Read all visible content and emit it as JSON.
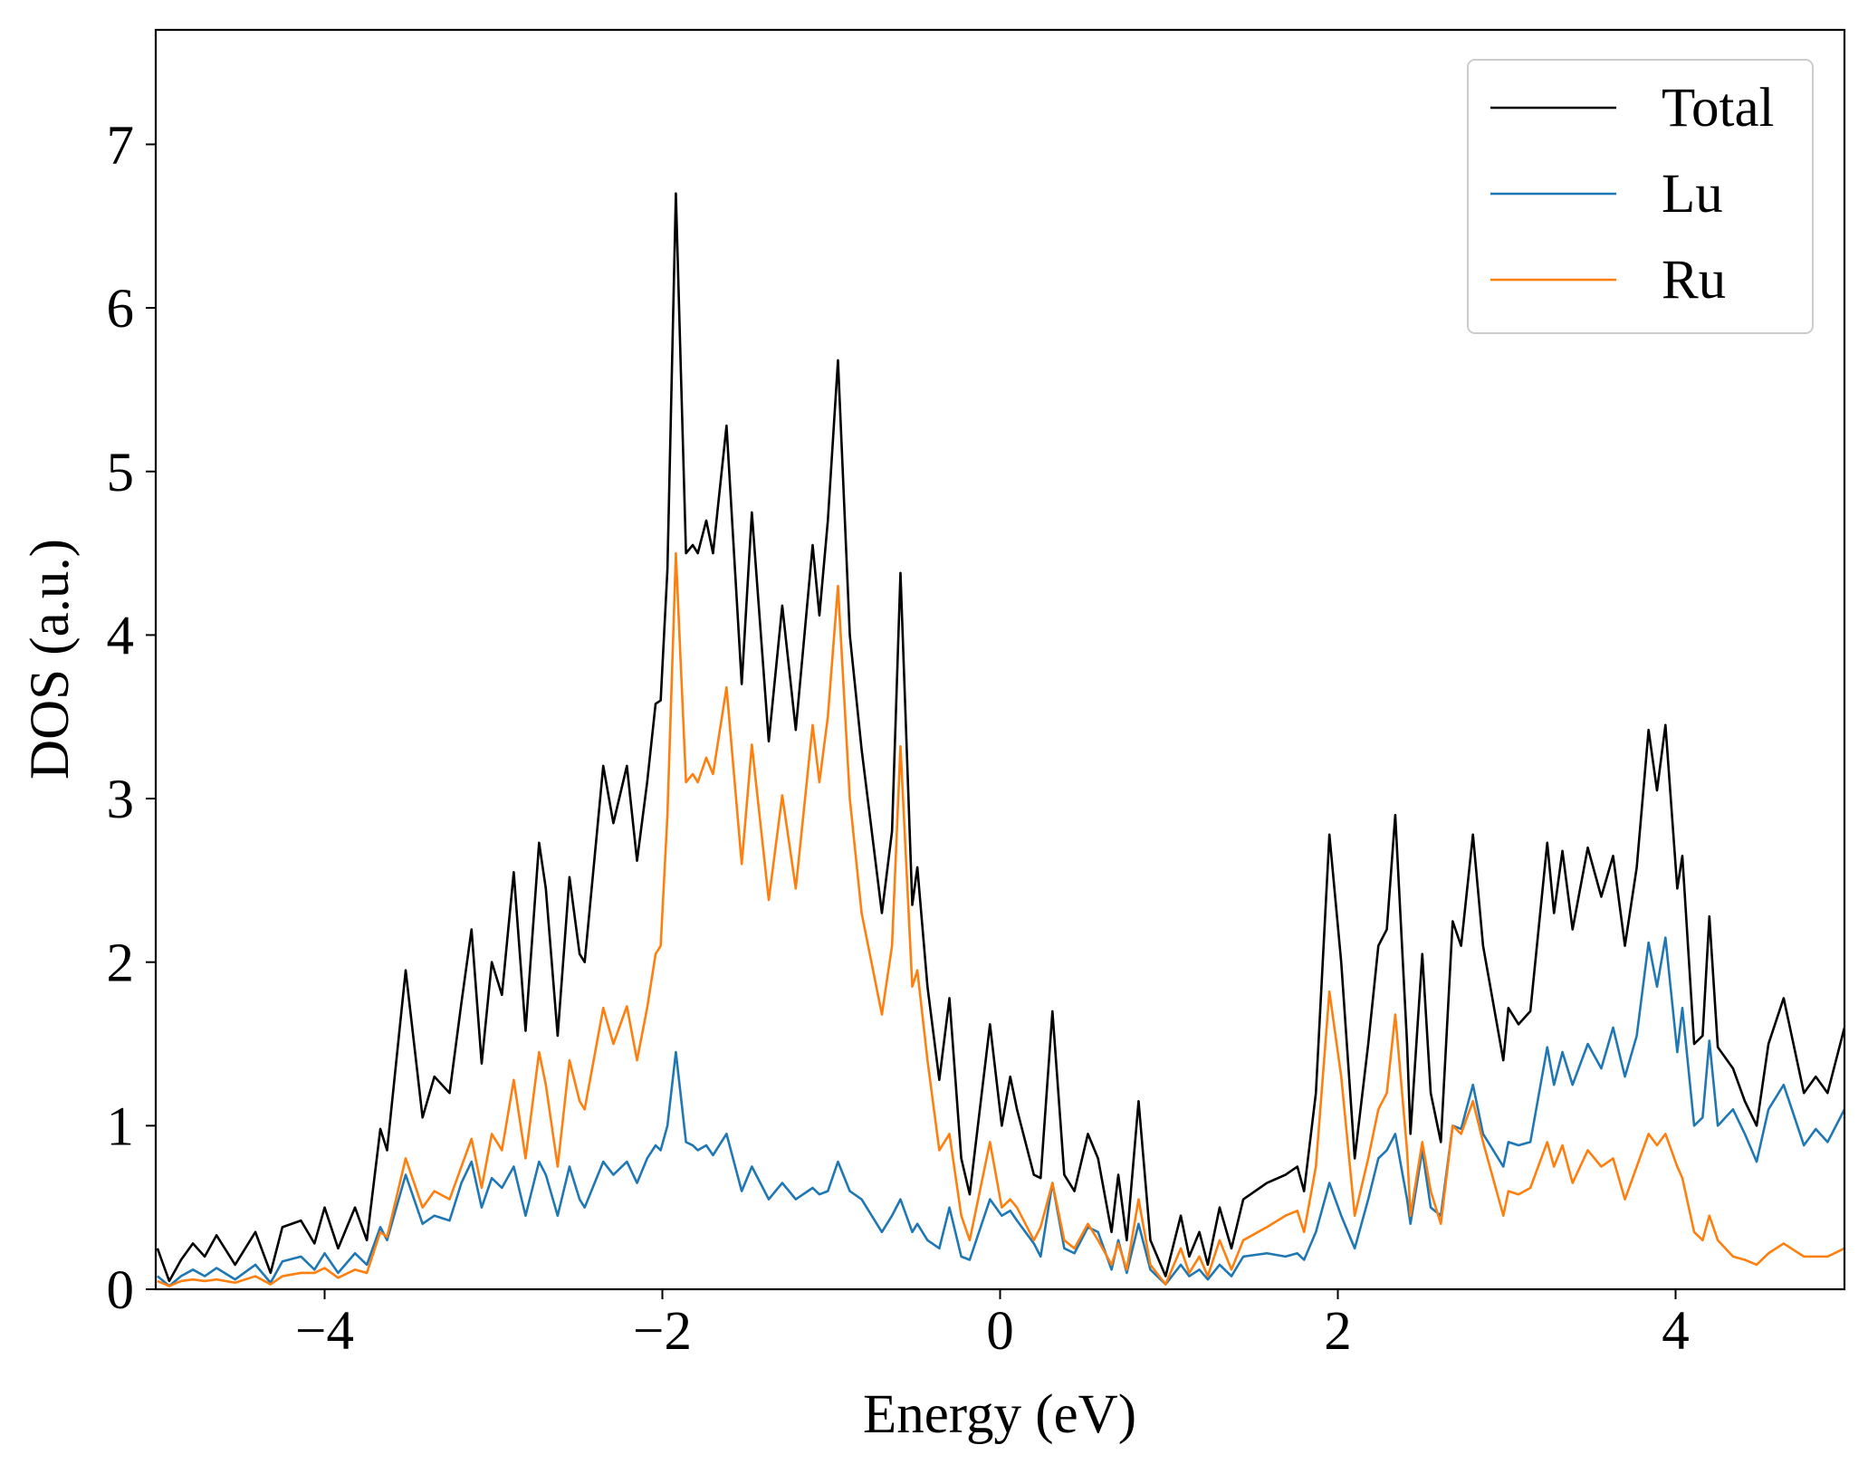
{
  "chart_data": {
    "type": "line",
    "xlabel": "Energy (eV)",
    "ylabel": "DOS (a.u.)",
    "xlim": [
      -5,
      5
    ],
    "ylim": [
      0,
      7.7
    ],
    "xticks": [
      {
        "value": -4,
        "label": "−4"
      },
      {
        "value": -2,
        "label": "−2"
      },
      0,
      2,
      4
    ],
    "yticks": [
      0,
      1,
      2,
      3,
      4,
      5,
      6,
      7
    ],
    "grid": false,
    "legend": "upper right",
    "x": [
      -4.99,
      -4.92,
      -4.85,
      -4.78,
      -4.71,
      -4.64,
      -4.53,
      -4.41,
      -4.32,
      -4.25,
      -4.14,
      -4.06,
      -4.0,
      -3.92,
      -3.82,
      -3.75,
      -3.67,
      -3.63,
      -3.52,
      -3.42,
      -3.35,
      -3.26,
      -3.19,
      -3.13,
      -3.07,
      -3.01,
      -2.95,
      -2.88,
      -2.81,
      -2.73,
      -2.69,
      -2.62,
      -2.55,
      -2.49,
      -2.46,
      -2.35,
      -2.29,
      -2.21,
      -2.15,
      -2.09,
      -2.04,
      -2.01,
      -1.97,
      -1.92,
      -1.86,
      -1.82,
      -1.79,
      -1.74,
      -1.7,
      -1.62,
      -1.53,
      -1.47,
      -1.37,
      -1.29,
      -1.21,
      -1.11,
      -1.07,
      -1.02,
      -0.96,
      -0.89,
      -0.82,
      -0.7,
      -0.64,
      -0.59,
      -0.52,
      -0.49,
      -0.43,
      -0.36,
      -0.3,
      -0.23,
      -0.18,
      -0.06,
      0.01,
      0.06,
      0.1,
      0.2,
      0.24,
      0.31,
      0.38,
      0.44,
      0.52,
      0.58,
      0.66,
      0.7,
      0.75,
      0.82,
      0.89,
      0.98,
      1.07,
      1.12,
      1.18,
      1.23,
      1.3,
      1.37,
      1.44,
      1.58,
      1.69,
      1.76,
      1.8,
      1.87,
      1.95,
      2.02,
      2.1,
      2.18,
      2.24,
      2.29,
      2.34,
      2.41,
      2.43,
      2.5,
      2.55,
      2.61,
      2.68,
      2.73,
      2.8,
      2.86,
      2.98,
      3.01,
      3.07,
      3.14,
      3.24,
      3.28,
      3.33,
      3.39,
      3.48,
      3.56,
      3.63,
      3.7,
      3.77,
      3.84,
      3.89,
      3.94,
      4.01,
      4.04,
      4.11,
      4.16,
      4.2,
      4.25,
      4.34,
      4.41,
      4.48,
      4.55,
      4.64,
      4.76,
      4.83,
      4.9,
      5.0
    ],
    "series": [
      {
        "name": "Total",
        "color": "#000000",
        "values": [
          0.25,
          0.05,
          0.18,
          0.28,
          0.2,
          0.33,
          0.15,
          0.35,
          0.1,
          0.38,
          0.42,
          0.28,
          0.5,
          0.25,
          0.5,
          0.3,
          0.98,
          0.85,
          1.95,
          1.05,
          1.3,
          1.2,
          1.75,
          2.2,
          1.38,
          2.0,
          1.8,
          2.55,
          1.58,
          2.73,
          2.45,
          1.55,
          2.52,
          2.05,
          2.0,
          3.2,
          2.85,
          3.2,
          2.62,
          3.1,
          3.58,
          3.6,
          4.4,
          6.7,
          4.5,
          4.55,
          4.5,
          4.7,
          4.5,
          5.28,
          3.7,
          4.75,
          3.35,
          4.18,
          3.42,
          4.55,
          4.12,
          4.7,
          5.68,
          4.0,
          3.3,
          2.3,
          2.8,
          4.38,
          2.35,
          2.58,
          1.85,
          1.28,
          1.78,
          0.8,
          0.58,
          1.62,
          1.0,
          1.3,
          1.1,
          0.7,
          0.68,
          1.7,
          0.7,
          0.6,
          0.95,
          0.8,
          0.35,
          0.7,
          0.3,
          1.15,
          0.3,
          0.08,
          0.45,
          0.2,
          0.35,
          0.15,
          0.5,
          0.25,
          0.55,
          0.65,
          0.7,
          0.75,
          0.6,
          1.2,
          2.78,
          2.0,
          0.8,
          1.5,
          2.1,
          2.2,
          2.9,
          1.5,
          0.95,
          2.05,
          1.2,
          0.9,
          2.25,
          2.1,
          2.78,
          2.1,
          1.4,
          1.72,
          1.62,
          1.7,
          2.73,
          2.3,
          2.68,
          2.2,
          2.7,
          2.4,
          2.65,
          2.1,
          2.58,
          3.42,
          3.05,
          3.45,
          2.45,
          2.65,
          1.5,
          1.55,
          2.28,
          1.48,
          1.35,
          1.15,
          1.0,
          1.5,
          1.78,
          1.2,
          1.3,
          1.2,
          1.6
        ]
      },
      {
        "name": "Lu",
        "color": "#1f77b4",
        "values": [
          0.08,
          0.02,
          0.08,
          0.12,
          0.08,
          0.13,
          0.06,
          0.15,
          0.04,
          0.17,
          0.2,
          0.12,
          0.22,
          0.1,
          0.22,
          0.15,
          0.38,
          0.3,
          0.7,
          0.4,
          0.45,
          0.42,
          0.65,
          0.78,
          0.5,
          0.68,
          0.62,
          0.75,
          0.45,
          0.78,
          0.7,
          0.45,
          0.75,
          0.55,
          0.5,
          0.78,
          0.7,
          0.78,
          0.65,
          0.8,
          0.88,
          0.85,
          1.0,
          1.45,
          0.9,
          0.88,
          0.85,
          0.88,
          0.82,
          0.95,
          0.6,
          0.75,
          0.55,
          0.65,
          0.55,
          0.62,
          0.58,
          0.6,
          0.78,
          0.6,
          0.55,
          0.35,
          0.45,
          0.55,
          0.35,
          0.4,
          0.3,
          0.25,
          0.5,
          0.2,
          0.18,
          0.55,
          0.45,
          0.48,
          0.42,
          0.28,
          0.2,
          0.65,
          0.25,
          0.22,
          0.38,
          0.35,
          0.12,
          0.3,
          0.1,
          0.4,
          0.12,
          0.03,
          0.15,
          0.08,
          0.12,
          0.06,
          0.15,
          0.08,
          0.2,
          0.22,
          0.2,
          0.22,
          0.18,
          0.35,
          0.65,
          0.45,
          0.25,
          0.55,
          0.8,
          0.85,
          0.95,
          0.55,
          0.4,
          0.85,
          0.5,
          0.45,
          1.0,
          0.98,
          1.25,
          0.95,
          0.75,
          0.9,
          0.88,
          0.9,
          1.48,
          1.25,
          1.45,
          1.25,
          1.5,
          1.35,
          1.6,
          1.3,
          1.55,
          2.12,
          1.85,
          2.15,
          1.45,
          1.72,
          1.0,
          1.05,
          1.52,
          1.0,
          1.1,
          0.95,
          0.78,
          1.1,
          1.25,
          0.88,
          0.98,
          0.9,
          1.1
        ]
      },
      {
        "name": "Ru",
        "color": "#ff7f0e",
        "values": [
          0.05,
          0.02,
          0.05,
          0.06,
          0.05,
          0.06,
          0.04,
          0.08,
          0.03,
          0.08,
          0.1,
          0.1,
          0.13,
          0.07,
          0.12,
          0.1,
          0.35,
          0.32,
          0.8,
          0.5,
          0.6,
          0.55,
          0.75,
          0.92,
          0.62,
          0.95,
          0.85,
          1.28,
          0.8,
          1.45,
          1.25,
          0.75,
          1.4,
          1.15,
          1.1,
          1.72,
          1.5,
          1.73,
          1.4,
          1.72,
          2.05,
          2.1,
          2.9,
          4.5,
          3.1,
          3.15,
          3.1,
          3.25,
          3.15,
          3.68,
          2.6,
          3.33,
          2.38,
          3.02,
          2.45,
          3.45,
          3.1,
          3.5,
          4.3,
          3.0,
          2.3,
          1.68,
          2.1,
          3.32,
          1.85,
          1.95,
          1.4,
          0.85,
          0.95,
          0.45,
          0.3,
          0.9,
          0.5,
          0.55,
          0.5,
          0.3,
          0.38,
          0.65,
          0.3,
          0.25,
          0.4,
          0.3,
          0.15,
          0.28,
          0.12,
          0.55,
          0.15,
          0.03,
          0.25,
          0.1,
          0.2,
          0.08,
          0.3,
          0.12,
          0.3,
          0.38,
          0.45,
          0.48,
          0.35,
          0.75,
          1.82,
          1.3,
          0.45,
          0.8,
          1.1,
          1.2,
          1.68,
          0.85,
          0.45,
          0.9,
          0.6,
          0.4,
          1.0,
          0.95,
          1.15,
          0.9,
          0.45,
          0.6,
          0.58,
          0.62,
          0.9,
          0.75,
          0.88,
          0.65,
          0.85,
          0.75,
          0.8,
          0.55,
          0.75,
          0.95,
          0.88,
          0.95,
          0.75,
          0.68,
          0.35,
          0.3,
          0.45,
          0.3,
          0.2,
          0.18,
          0.15,
          0.22,
          0.28,
          0.2,
          0.2,
          0.2,
          0.25
        ]
      }
    ]
  }
}
